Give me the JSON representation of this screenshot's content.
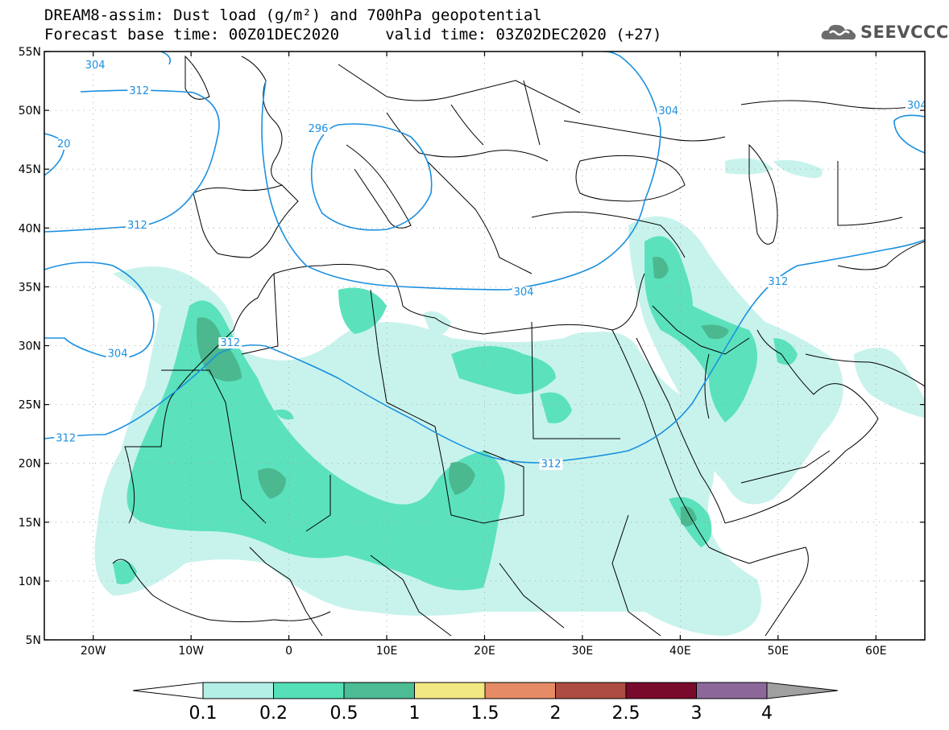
{
  "header": {
    "title_line1": "DREAM8-assim: Dust load (g/m²) and 700hPa geopotential",
    "title_line2": "Forecast base time: 00Z01DEC2020     valid time: 03Z02DEC2020 (+27)"
  },
  "logo": {
    "text": "SEEVCCC",
    "icon": "cloud-icon"
  },
  "map": {
    "lon_range": [
      -25,
      65
    ],
    "lat_range": [
      5,
      55
    ],
    "lat_ticks": [
      "55N",
      "50N",
      "45N",
      "40N",
      "35N",
      "30N",
      "25N",
      "20N",
      "15N",
      "10N",
      "5N"
    ],
    "lon_ticks": [
      "20W",
      "10W",
      "0",
      "10E",
      "20E",
      "30E",
      "40E",
      "50E",
      "60E"
    ],
    "contour_labels": [
      {
        "text": "304",
        "lon": -19.8,
        "lat": 53.9
      },
      {
        "text": "312",
        "lon": -15.3,
        "lat": 51.7
      },
      {
        "text": "20",
        "lon": -23.0,
        "lat": 47.2
      },
      {
        "text": "296",
        "lon": 3.0,
        "lat": 48.5
      },
      {
        "text": "312",
        "lon": -15.5,
        "lat": 40.3
      },
      {
        "text": "304",
        "lon": 38.8,
        "lat": 50.0
      },
      {
        "text": "312",
        "lon": 50.0,
        "lat": 35.5
      },
      {
        "text": "304",
        "lon": 24.0,
        "lat": 34.6
      },
      {
        "text": "312",
        "lon": -6.0,
        "lat": 30.3
      },
      {
        "text": "304",
        "lon": -17.5,
        "lat": 29.4
      },
      {
        "text": "312",
        "lon": -22.8,
        "lat": 22.2
      },
      {
        "text": "312",
        "lon": 26.8,
        "lat": 20.0
      },
      {
        "text": "304",
        "lon": 64.2,
        "lat": 50.5
      }
    ],
    "colors": {
      "contour": "#1a90e0",
      "land": "#ffffff",
      "border": "#000000"
    }
  },
  "colorbar": {
    "labels": [
      "0.1",
      "0.2",
      "0.5",
      "1",
      "1.5",
      "2",
      "2.5",
      "3",
      "4"
    ],
    "colors": [
      "#ffffff",
      "#b4efe6",
      "#55e0b8",
      "#4cbc94",
      "#f2e882",
      "#e58b65",
      "#ad4c43",
      "#7a0a2c",
      "#8c689a",
      "#a0a0a0"
    ]
  }
}
